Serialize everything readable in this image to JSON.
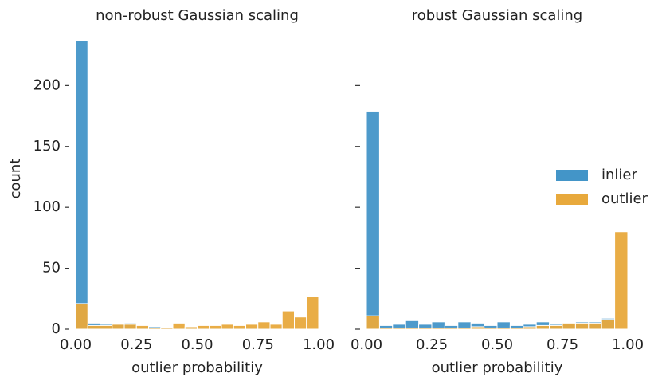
{
  "chart_data": [
    {
      "type": "histogram",
      "title": "non-robust Gaussian scaling",
      "xlabel": "outlier probabilitiy",
      "ylabel": "count",
      "bins": [
        0,
        0.05,
        0.1,
        0.15,
        0.2,
        0.25,
        0.3,
        0.35,
        0.4,
        0.45,
        0.5,
        0.55,
        0.6,
        0.65,
        0.7,
        0.75,
        0.8,
        0.85,
        0.9,
        0.95,
        1
      ],
      "series": [
        {
          "name": "inlier",
          "color": "#4395c8",
          "values": [
            237,
            5,
            4,
            4,
            5,
            2,
            2,
            1,
            1,
            1,
            1,
            1,
            1,
            1,
            1,
            1,
            0,
            0,
            0,
            0
          ]
        },
        {
          "name": "outlier",
          "color": "#e8a93c",
          "values": [
            21,
            3,
            3,
            4,
            4,
            3,
            1,
            1,
            5,
            2,
            3,
            3,
            4,
            3,
            4,
            6,
            4,
            15,
            10,
            27
          ]
        }
      ],
      "xlim": [
        0,
        1
      ],
      "ylim": [
        0,
        248
      ],
      "xticks": [
        {
          "value": 0,
          "label": "0.00"
        },
        {
          "value": 0.25,
          "label": "0.25"
        },
        {
          "value": 0.5,
          "label": "0.50"
        },
        {
          "value": 0.75,
          "label": "0.75"
        },
        {
          "value": 1,
          "label": "1.00"
        }
      ],
      "yticks": [
        0,
        50,
        100,
        150,
        200
      ],
      "show_ytick_labels": true,
      "legend": false
    },
    {
      "type": "histogram",
      "title": "robust Gaussian scaling",
      "xlabel": "outlier probabilitiy",
      "bins": [
        0,
        0.05,
        0.1,
        0.15,
        0.2,
        0.25,
        0.3,
        0.35,
        0.4,
        0.45,
        0.5,
        0.55,
        0.6,
        0.65,
        0.7,
        0.75,
        0.8,
        0.85,
        0.9,
        0.95,
        1
      ],
      "series": [
        {
          "name": "inlier",
          "color": "#4395c8",
          "values": [
            179,
            3,
            4,
            7,
            4,
            6,
            3,
            6,
            5,
            3,
            6,
            3,
            4,
            6,
            4,
            5,
            6,
            6,
            9,
            0
          ]
        },
        {
          "name": "outlier",
          "color": "#e8a93c",
          "values": [
            11,
            1,
            1,
            1,
            1,
            1,
            1,
            1,
            2,
            1,
            1,
            1,
            2,
            3,
            3,
            5,
            5,
            5,
            8,
            80
          ]
        }
      ],
      "xlim": [
        0,
        1
      ],
      "ylim": [
        0,
        248
      ],
      "xticks": [
        {
          "value": 0,
          "label": "0.00"
        },
        {
          "value": 0.25,
          "label": "0.25"
        },
        {
          "value": 0.5,
          "label": "0.50"
        },
        {
          "value": 0.75,
          "label": "0.75"
        },
        {
          "value": 1,
          "label": "1.00"
        }
      ],
      "yticks": [
        0,
        50,
        100,
        150,
        200
      ],
      "show_ytick_labels": false,
      "legend": "center right"
    }
  ]
}
